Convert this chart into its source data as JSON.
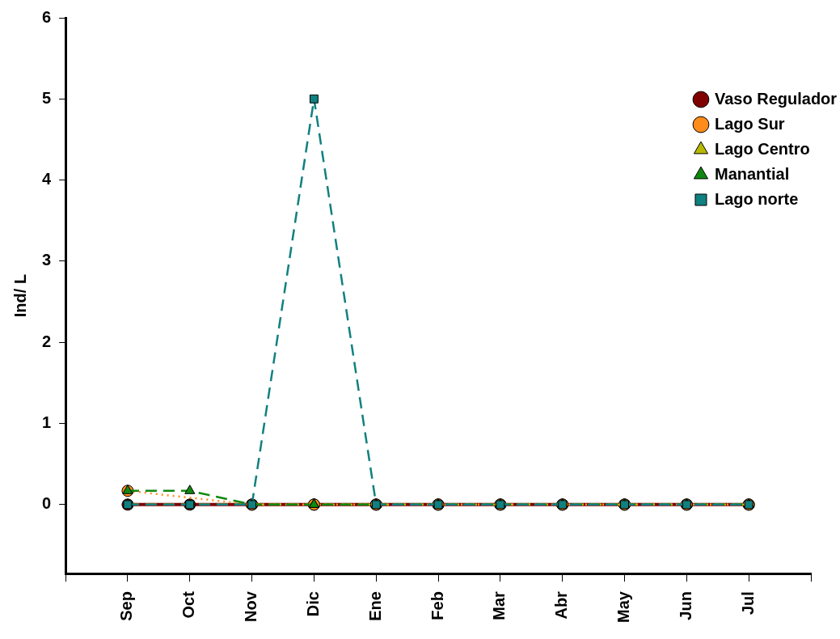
{
  "chart_data": {
    "type": "line",
    "ylabel": "Ind/ L",
    "categories": [
      null,
      "Sep",
      "Oct",
      "Nov",
      "Dic",
      "Ene",
      "Feb",
      "Mar",
      "Abr",
      "May",
      "Jun",
      "Jul",
      null
    ],
    "series": [
      {
        "name": "Vaso Regulador",
        "color": "#800000",
        "marker": "circle",
        "line_style": "solid",
        "values": [
          null,
          0,
          0,
          0,
          0,
          0,
          0,
          0,
          0,
          0,
          0,
          0,
          null
        ]
      },
      {
        "name": "Lago Sur",
        "color": "#ff8c1a",
        "marker": "circle",
        "line_style": "dotted",
        "values": [
          null,
          0.17,
          null,
          0,
          0,
          0,
          0,
          0,
          0,
          0,
          0,
          0,
          null
        ]
      },
      {
        "name": "Lago Centro",
        "color": "#b8b800",
        "marker": "triangle",
        "line_style": "dashed",
        "values": [
          null,
          0,
          0,
          0,
          0,
          0,
          0,
          0,
          0,
          0,
          0,
          0,
          null
        ]
      },
      {
        "name": "Manantial",
        "color": "#118811",
        "marker": "triangle",
        "line_style": "dashed",
        "values": [
          null,
          0.17,
          0.17,
          0,
          0,
          0,
          0,
          0,
          0,
          0,
          0,
          0,
          null
        ]
      },
      {
        "name": "Lago norte",
        "color": "#118080",
        "marker": "square",
        "line_style": "dashed",
        "values": [
          null,
          0,
          0,
          0,
          5,
          0,
          0,
          0,
          0,
          0,
          0,
          0,
          null
        ]
      }
    ],
    "ylim": [
      -0.85,
      6
    ],
    "yticks": [
      0,
      1,
      2,
      3,
      4,
      5,
      6
    ],
    "grid": false,
    "legend": "top right"
  }
}
